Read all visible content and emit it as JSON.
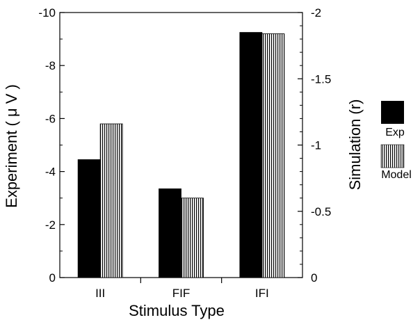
{
  "chart_data": {
    "type": "bar",
    "title": "",
    "xlabel": "Stimulus Type",
    "ylabel_left": "Experiment ( μ V )",
    "ylabel_right": "Simulation (r)",
    "categories": [
      "III",
      "FIF",
      "IFI"
    ],
    "left_axis": {
      "ylim": [
        0,
        -10
      ],
      "ticks": [
        0,
        -2,
        -4,
        -6,
        -8,
        -10
      ],
      "tick_labels": [
        "0",
        "-2",
        "-4",
        "-6",
        "-8",
        "-10"
      ]
    },
    "right_axis": {
      "ylim": [
        0,
        -2
      ],
      "ticks": [
        0,
        -0.5,
        -1,
        -1.5,
        -2
      ],
      "tick_labels": [
        "0",
        "-0.5",
        "-1",
        "-1.5",
        "-2"
      ]
    },
    "series": [
      {
        "name": "Exp",
        "axis": "left",
        "values": [
          -4.45,
          -3.35,
          -9.25
        ],
        "color": "#000000",
        "pattern": "solid"
      },
      {
        "name": "Model",
        "axis": "right",
        "values": [
          -1.16,
          -0.6,
          -1.84
        ],
        "color": "#000000",
        "pattern": "vertical-stripes"
      }
    ],
    "legend_position": "right",
    "grid": false
  }
}
